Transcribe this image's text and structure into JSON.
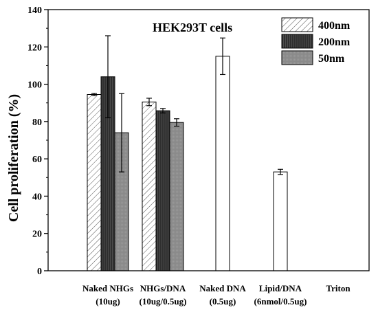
{
  "chart_data": {
    "type": "bar",
    "title": "HEK293T cells",
    "xlabel": "",
    "ylabel": "Cell proliferation (%)",
    "ylim": [
      0,
      140
    ],
    "yticks": [
      0,
      20,
      40,
      60,
      80,
      100,
      120,
      140
    ],
    "categories": [
      [
        "Naked NHGs",
        "(10ug)"
      ],
      [
        "NHGs/DNA",
        "(10ug/0.5ug)"
      ],
      [
        "Naked DNA",
        "(0.5ug)"
      ],
      [
        "Lipid/DNA",
        "(6nmol/0.5ug)"
      ],
      [
        "Triton",
        ""
      ]
    ],
    "series": [
      {
        "name": "400nm",
        "style": "hatched",
        "color": "#ffffff",
        "values": [
          94.5,
          90.5,
          null,
          null,
          null
        ],
        "errors": [
          0.6,
          2.0,
          null,
          null,
          null
        ]
      },
      {
        "name": "200nm",
        "style": "dark",
        "color": "#3a3a3a",
        "values": [
          104,
          85.8,
          null,
          null,
          null
        ],
        "errors": [
          22,
          1.2,
          null,
          null,
          null
        ]
      },
      {
        "name": "50nm",
        "style": "gray",
        "color": "#8c8c8c",
        "values": [
          74,
          79.5,
          null,
          null,
          null
        ],
        "errors": [
          21,
          2.0,
          null,
          null,
          null
        ]
      }
    ],
    "single_bars": [
      {
        "category_index": 2,
        "value": 115,
        "error": 9.8,
        "color": "#ffffff"
      },
      {
        "category_index": 3,
        "value": 53,
        "error": 1.4,
        "color": "#ffffff"
      }
    ],
    "legend_position": "top-right",
    "grid": false
  }
}
